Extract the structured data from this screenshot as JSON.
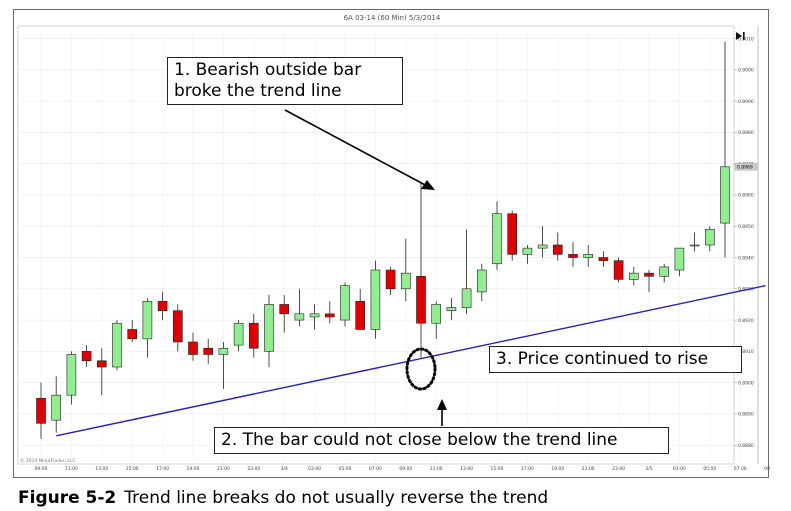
{
  "figure": {
    "caption_label": "Figure 5-2",
    "caption_text": "Trend line breaks do not usually reverse the trend"
  },
  "chart_data": {
    "type": "candlestick",
    "title": "6A 03-14 (60 Min) 5/3/2014",
    "copyright": "© 2014 NinjaTrader, LLC",
    "y_tick_labels": [
      "0.8880",
      "0.8890",
      "0.8900",
      "0.8910",
      "0.8920",
      "0.8930",
      "0.8940",
      "0.8950",
      "0.8960",
      "0.8970",
      "0.8980",
      "0.8990",
      "0.9000",
      "0.9010"
    ],
    "ylim": [
      0.8874,
      0.9014
    ],
    "x_tick_labels": [
      "09:00",
      "11:00",
      "13:00",
      "15:00",
      "17:00",
      "19:00",
      "21:00",
      "23:00",
      "3/4",
      "03:00",
      "05:00",
      "07:00",
      "09:00",
      "11:00",
      "13:00",
      "15:00",
      "17:00",
      "19:00",
      "21:00",
      "23:00",
      "3/5",
      "03:00",
      "05:00",
      "07:00",
      "09:00"
    ],
    "current_price_label": "0.8969",
    "up_color": "#90ee90",
    "down_color": "#e00000",
    "trend_line_color": "#2020c0",
    "trend_line": {
      "start": [
        1,
        0.8883
      ],
      "end": [
        47,
        0.8931
      ]
    },
    "candles": [
      {
        "o": 0.8895,
        "h": 0.89,
        "l": 0.8882,
        "c": 0.8887
      },
      {
        "o": 0.8888,
        "h": 0.8902,
        "l": 0.8884,
        "c": 0.8896
      },
      {
        "o": 0.8896,
        "h": 0.891,
        "l": 0.8893,
        "c": 0.8909
      },
      {
        "o": 0.891,
        "h": 0.8912,
        "l": 0.8905,
        "c": 0.8907
      },
      {
        "o": 0.8907,
        "h": 0.8911,
        "l": 0.8896,
        "c": 0.8905
      },
      {
        "o": 0.8905,
        "h": 0.892,
        "l": 0.8904,
        "c": 0.8919
      },
      {
        "o": 0.8917,
        "h": 0.892,
        "l": 0.8913,
        "c": 0.8914
      },
      {
        "o": 0.8914,
        "h": 0.8927,
        "l": 0.8908,
        "c": 0.8926
      },
      {
        "o": 0.8926,
        "h": 0.8929,
        "l": 0.892,
        "c": 0.8923
      },
      {
        "o": 0.8923,
        "h": 0.8925,
        "l": 0.891,
        "c": 0.8913
      },
      {
        "o": 0.8913,
        "h": 0.8916,
        "l": 0.8907,
        "c": 0.8909
      },
      {
        "o": 0.8911,
        "h": 0.8914,
        "l": 0.8906,
        "c": 0.8909
      },
      {
        "o": 0.8909,
        "h": 0.8913,
        "l": 0.8898,
        "c": 0.8911
      },
      {
        "o": 0.8912,
        "h": 0.892,
        "l": 0.891,
        "c": 0.8919
      },
      {
        "o": 0.8919,
        "h": 0.8922,
        "l": 0.8908,
        "c": 0.8911
      },
      {
        "o": 0.891,
        "h": 0.8928,
        "l": 0.8905,
        "c": 0.8925
      },
      {
        "o": 0.8925,
        "h": 0.8928,
        "l": 0.8916,
        "c": 0.8922
      },
      {
        "o": 0.892,
        "h": 0.893,
        "l": 0.8918,
        "c": 0.8922
      },
      {
        "o": 0.8921,
        "h": 0.8925,
        "l": 0.8917,
        "c": 0.8922
      },
      {
        "o": 0.8922,
        "h": 0.8926,
        "l": 0.8919,
        "c": 0.8921
      },
      {
        "o": 0.892,
        "h": 0.8932,
        "l": 0.8918,
        "c": 0.8931
      },
      {
        "o": 0.8926,
        "h": 0.893,
        "l": 0.8917,
        "c": 0.8917
      },
      {
        "o": 0.8917,
        "h": 0.8939,
        "l": 0.8914,
        "c": 0.8936
      },
      {
        "o": 0.8936,
        "h": 0.8937,
        "l": 0.8928,
        "c": 0.893
      },
      {
        "o": 0.893,
        "h": 0.8946,
        "l": 0.8926,
        "c": 0.8935
      },
      {
        "o": 0.8934,
        "h": 0.8964,
        "l": 0.8908,
        "c": 0.8919
      },
      {
        "o": 0.8919,
        "h": 0.8926,
        "l": 0.8914,
        "c": 0.8925
      },
      {
        "o": 0.8923,
        "h": 0.8927,
        "l": 0.892,
        "c": 0.8924
      },
      {
        "o": 0.8924,
        "h": 0.8949,
        "l": 0.8922,
        "c": 0.893
      },
      {
        "o": 0.8929,
        "h": 0.8938,
        "l": 0.8926,
        "c": 0.8936
      },
      {
        "o": 0.8938,
        "h": 0.8958,
        "l": 0.8936,
        "c": 0.8954
      },
      {
        "o": 0.8954,
        "h": 0.8955,
        "l": 0.8939,
        "c": 0.8941
      },
      {
        "o": 0.8941,
        "h": 0.8944,
        "l": 0.8938,
        "c": 0.8943
      },
      {
        "o": 0.8943,
        "h": 0.895,
        "l": 0.894,
        "c": 0.8944
      },
      {
        "o": 0.8944,
        "h": 0.8948,
        "l": 0.8939,
        "c": 0.8941
      },
      {
        "o": 0.8941,
        "h": 0.8945,
        "l": 0.8937,
        "c": 0.894
      },
      {
        "o": 0.894,
        "h": 0.8944,
        "l": 0.8937,
        "c": 0.8941
      },
      {
        "o": 0.894,
        "h": 0.8942,
        "l": 0.8937,
        "c": 0.8939
      },
      {
        "o": 0.8939,
        "h": 0.894,
        "l": 0.8932,
        "c": 0.8933
      },
      {
        "o": 0.8933,
        "h": 0.8937,
        "l": 0.8931,
        "c": 0.8935
      },
      {
        "o": 0.8935,
        "h": 0.8936,
        "l": 0.8929,
        "c": 0.8934
      },
      {
        "o": 0.8934,
        "h": 0.8938,
        "l": 0.8932,
        "c": 0.8937
      },
      {
        "o": 0.8936,
        "h": 0.8943,
        "l": 0.8934,
        "c": 0.8943
      },
      {
        "o": 0.8944,
        "h": 0.8948,
        "l": 0.8942,
        "c": 0.8944
      },
      {
        "o": 0.8944,
        "h": 0.895,
        "l": 0.8942,
        "c": 0.8949
      },
      {
        "o": 0.8951,
        "h": 0.9009,
        "l": 0.894,
        "c": 0.8969
      }
    ]
  },
  "annotations": [
    {
      "lines": [
        "1. Bearish outside bar",
        "broke the trend line"
      ]
    },
    {
      "lines": [
        "2. The bar could not close below the trend line"
      ]
    },
    {
      "lines": [
        "3. Price continued to rise"
      ]
    }
  ]
}
